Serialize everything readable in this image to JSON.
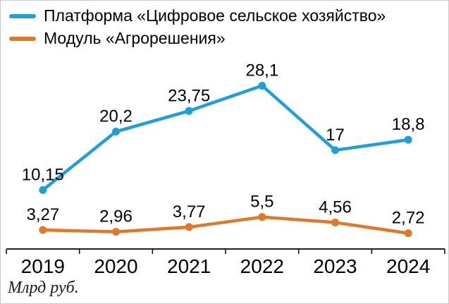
{
  "legend": {
    "items": [
      {
        "label": "Платформа «Цифровое сельское хозяйство»",
        "color": "#1e9fdb"
      },
      {
        "label": "Модуль «Агрорешения»",
        "color": "#e0782a"
      }
    ]
  },
  "footer": {
    "unit_label": "Млрд руб."
  },
  "chart_data": {
    "type": "line",
    "categories": [
      "2019",
      "2020",
      "2021",
      "2022",
      "2023",
      "2024"
    ],
    "series": [
      {
        "name": "Платформа «Цифровое сельское хозяйство»",
        "color": "#1e9fdb",
        "values": [
          10.15,
          20.2,
          23.75,
          28.1,
          17,
          18.8
        ],
        "labels": [
          "10,15",
          "20,2",
          "23,75",
          "28,1",
          "17",
          "18,8"
        ]
      },
      {
        "name": "Модуль «Агрорешения»",
        "color": "#e0782a",
        "values": [
          3.27,
          2.96,
          3.77,
          5.5,
          4.56,
          2.72
        ],
        "labels": [
          "3,27",
          "2,96",
          "3,77",
          "5,5",
          "4,56",
          "2,72"
        ]
      }
    ],
    "title": "",
    "xlabel": "",
    "ylabel": "Млрд руб.",
    "ylim": [
      0,
      30
    ],
    "grid": false,
    "legend_position": "top-left"
  }
}
